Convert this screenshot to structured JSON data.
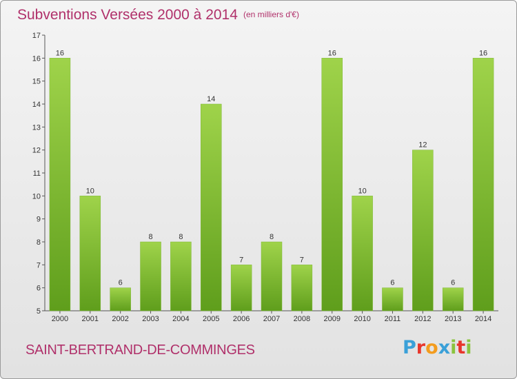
{
  "header": {
    "title": "Subventions Versées 2000 à 2014",
    "unit": "(en milliers d'€)"
  },
  "footer": {
    "place": "SAINT-BERTRAND-DE-COMMINGES",
    "logo_letters": [
      "P",
      "r",
      "o",
      "x",
      "i",
      "t",
      "i"
    ],
    "logo_colors": [
      "#3aa0d8",
      "#e8362c",
      "#f39c1e",
      "#3aa0d8",
      "#8bc43f",
      "#e8362c",
      "#8bc43f"
    ]
  },
  "colors": {
    "title": "#b0306a",
    "bar_light": "#9fd34a",
    "bar_dark": "#5f9e1c",
    "axis": "#555555"
  },
  "chart_data": {
    "type": "bar",
    "title": "Subventions Versées 2000 à 2014",
    "subtitle": "(en milliers d'€)",
    "xlabel": "",
    "ylabel": "",
    "ylim": [
      5,
      17
    ],
    "yticks": [
      5,
      6,
      7,
      8,
      9,
      10,
      11,
      12,
      13,
      14,
      15,
      16,
      17
    ],
    "grid": false,
    "categories": [
      "2000",
      "2001",
      "2002",
      "2003",
      "2004",
      "2005",
      "2006",
      "2007",
      "2008",
      "2009",
      "2010",
      "2011",
      "2012",
      "2013",
      "2014"
    ],
    "values": [
      16,
      10,
      6,
      8,
      8,
      14,
      7,
      8,
      7,
      16,
      10,
      6,
      12,
      6,
      16
    ]
  }
}
